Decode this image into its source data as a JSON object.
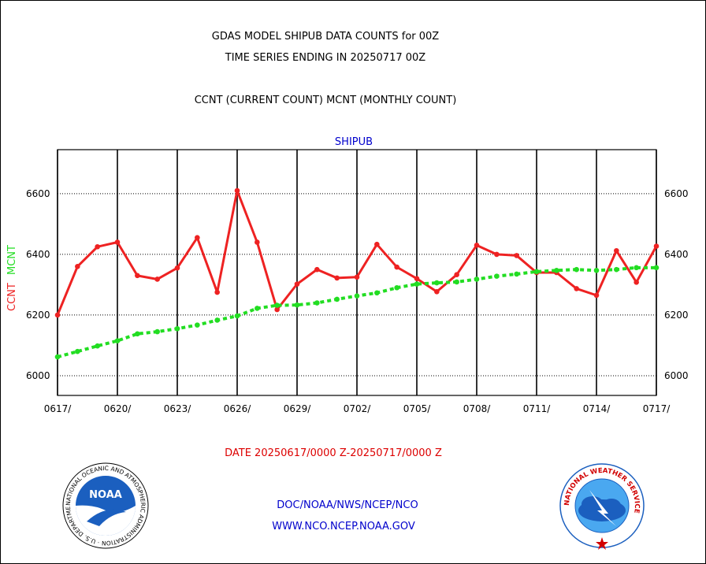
{
  "header": {
    "title_line1": "GDAS MODEL SHIPUB DATA COUNTS for 00Z",
    "title_line2": "TIME SERIES ENDING IN 20250717 00Z",
    "subtitle": "CCNT (CURRENT COUNT) MCNT (MONTHLY COUNT)"
  },
  "footer": {
    "date_range": "DATE 20250617/0000 Z-20250717/0000 Z",
    "org_path": "DOC/NOAA/NWS/NCEP/NCO",
    "website": "WWW.NCO.NCEP.NOAA.GOV"
  },
  "logos": {
    "left": {
      "name": "NOAA",
      "ring_text": "NATIONAL OCEANIC AND ATMOSPHERIC ADMINISTRATION · U.S. DEPARTMENT OF COMMERCE"
    },
    "right": {
      "ring_text": "NATIONAL WEATHER SERVICE"
    }
  },
  "colors": {
    "ccnt": "#ee2222",
    "mcnt": "#22dd22",
    "title_blue": "#0000cc",
    "date_red": "#dd0000"
  },
  "chart_data": {
    "type": "line",
    "title": "SHIPUB",
    "ylabel_left": [
      "CCNT",
      "MCNT"
    ],
    "ylim": [
      5935,
      6745
    ],
    "yticks": [
      6000,
      6200,
      6400,
      6600
    ],
    "xtick_labels": [
      "0617/",
      "0620/",
      "0623/",
      "0626/",
      "0629/",
      "0702/",
      "0705/",
      "0708/",
      "0711/",
      "0714/",
      "0717/"
    ],
    "grid": true,
    "x": [
      "0617",
      "0618",
      "0619",
      "0620",
      "0621",
      "0622",
      "0623",
      "0624",
      "0625",
      "0626",
      "0627",
      "0628",
      "0629",
      "0630",
      "0701",
      "0702",
      "0703",
      "0704",
      "0705",
      "0706",
      "0707",
      "0708",
      "0709",
      "0710",
      "0711",
      "0712",
      "0713",
      "0714",
      "0715",
      "0716",
      "0717"
    ],
    "series": [
      {
        "name": "CCNT",
        "style": "solid",
        "values": [
          6200,
          6360,
          6425,
          6440,
          6330,
          6318,
          6355,
          6455,
          6275,
          6610,
          6440,
          6218,
          6302,
          6350,
          6322,
          6325,
          6433,
          6358,
          6320,
          6277,
          6333,
          6430,
          6400,
          6396,
          6340,
          6340,
          6287,
          6265,
          6412,
          6308,
          6427
        ]
      },
      {
        "name": "MCNT",
        "style": "dotted",
        "values": [
          6062,
          6080,
          6098,
          6115,
          6138,
          6145,
          6155,
          6167,
          6183,
          6197,
          6222,
          6232,
          6233,
          6240,
          6252,
          6263,
          6273,
          6290,
          6302,
          6306,
          6309,
          6318,
          6328,
          6335,
          6343,
          6347,
          6350,
          6347,
          6350,
          6356,
          6356
        ]
      }
    ]
  }
}
